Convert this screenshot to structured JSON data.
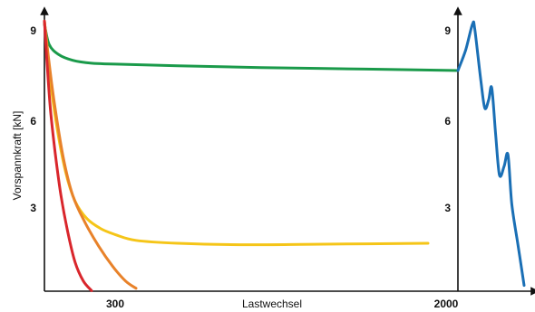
{
  "chart_data": {
    "type": "line",
    "title": "",
    "xlabel": "Lastwechsel",
    "ylabel": "Vorspannkraft [kN]",
    "y_ticks": [
      "9",
      "6",
      "3"
    ],
    "y_ticks_right": [
      "9",
      "6",
      "3"
    ],
    "x_ticks": [
      "300",
      "2000"
    ],
    "ylim": [
      0,
      10
    ],
    "grid": false,
    "colors": {
      "green": "#1a9a4a",
      "yellow": "#f5c518",
      "orange": "#e8822a",
      "red": "#d9262c",
      "blue": "#1a6fb5"
    },
    "series": [
      {
        "color": "green",
        "points": [
          [
            0,
            9.2
          ],
          [
            20,
            8.5
          ],
          [
            60,
            8.15
          ],
          [
            120,
            7.95
          ],
          [
            200,
            7.85
          ],
          [
            300,
            7.82
          ],
          [
            600,
            7.76
          ],
          [
            1000,
            7.7
          ],
          [
            1500,
            7.65
          ],
          [
            2000,
            7.6
          ]
        ]
      },
      {
        "color": "yellow",
        "points": [
          [
            0,
            9.3
          ],
          [
            20,
            7.6
          ],
          [
            50,
            5.8
          ],
          [
            90,
            4.1
          ],
          [
            130,
            3.1
          ],
          [
            180,
            2.5
          ],
          [
            240,
            2.15
          ],
          [
            300,
            1.95
          ],
          [
            400,
            1.75
          ],
          [
            600,
            1.65
          ],
          [
            900,
            1.6
          ],
          [
            1300,
            1.62
          ],
          [
            1800,
            1.65
          ]
        ]
      },
      {
        "color": "orange",
        "points": [
          [
            0,
            9.3
          ],
          [
            15,
            8.2
          ],
          [
            40,
            6.6
          ],
          [
            80,
            4.6
          ],
          [
            120,
            3.3
          ],
          [
            170,
            2.4
          ],
          [
            230,
            1.55
          ],
          [
            290,
            0.85
          ],
          [
            350,
            0.35
          ],
          [
            400,
            0.1
          ]
        ]
      },
      {
        "color": "red",
        "points": [
          [
            0,
            9.3
          ],
          [
            10,
            8.0
          ],
          [
            25,
            6.3
          ],
          [
            45,
            4.8
          ],
          [
            70,
            3.3
          ],
          [
            100,
            2.0
          ],
          [
            130,
            1.0
          ],
          [
            165,
            0.35
          ],
          [
            200,
            0.02
          ]
        ]
      },
      {
        "color": "blue",
        "points": [
          [
            2000,
            7.6
          ],
          [
            2050,
            8.3
          ],
          [
            2095,
            9.2
          ],
          [
            2110,
            9.0
          ],
          [
            2150,
            7.2
          ],
          [
            2175,
            6.3
          ],
          [
            2200,
            6.6
          ],
          [
            2220,
            7.0
          ],
          [
            2245,
            5.4
          ],
          [
            2270,
            4.0
          ],
          [
            2300,
            4.3
          ],
          [
            2325,
            4.7
          ],
          [
            2350,
            3.0
          ],
          [
            2390,
            1.6
          ],
          [
            2430,
            0.2
          ]
        ]
      }
    ]
  }
}
